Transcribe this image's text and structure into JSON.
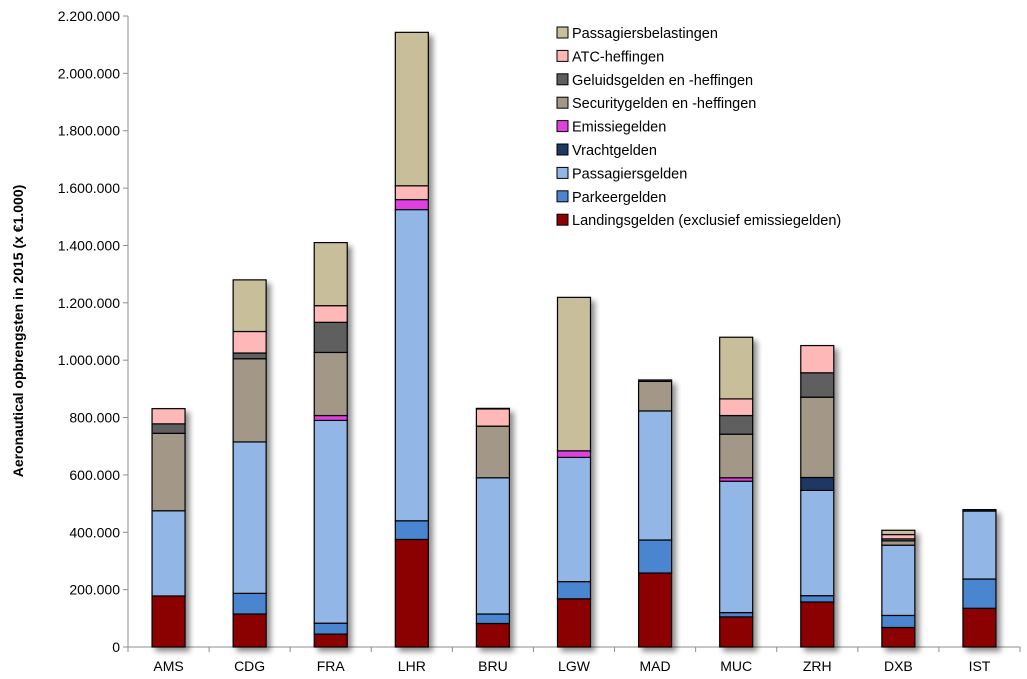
{
  "chart_data": {
    "type": "bar",
    "stacked": true,
    "title": "",
    "xlabel": "",
    "ylabel": "Aeronautical opbrengsten in 2015 (x €1.000)",
    "ylim": [
      0,
      2200000
    ],
    "y_ticks": [
      "0",
      "200.000",
      "400.000",
      "600.000",
      "800.000",
      "1.000.000",
      "1.200.000",
      "1.400.000",
      "1.600.000",
      "1.800.000",
      "2.000.000",
      "2.200.000"
    ],
    "categories": [
      "AMS",
      "CDG",
      "FRA",
      "LHR",
      "BRU",
      "LGW",
      "MAD",
      "MUC",
      "ZRH",
      "DXB",
      "IST"
    ],
    "legend_position": "top-right",
    "series": [
      {
        "name": "Landingsgelden (exclusief emissiegelden)",
        "color": "#8b0000",
        "values": [
          178000,
          115000,
          45000,
          375000,
          82000,
          168000,
          258000,
          105000,
          157000,
          68000,
          135000
        ]
      },
      {
        "name": "Parkeergelden",
        "color": "#4a86cf",
        "values": [
          0,
          72000,
          38000,
          65000,
          33000,
          60000,
          115000,
          15000,
          22000,
          42000,
          102000
        ]
      },
      {
        "name": "Passagiersgelden",
        "color": "#92b6e6",
        "values": [
          297000,
          528000,
          707000,
          1085000,
          475000,
          433000,
          450000,
          458000,
          367000,
          245000,
          237000
        ]
      },
      {
        "name": "Vrachtgelden",
        "color": "#1f3864",
        "values": [
          0,
          0,
          0,
          0,
          0,
          0,
          0,
          0,
          45000,
          0,
          5000
        ]
      },
      {
        "name": "Emissiegelden",
        "color": "#e040e0",
        "values": [
          0,
          0,
          17000,
          35000,
          0,
          23000,
          0,
          12000,
          0,
          0,
          0
        ]
      },
      {
        "name": "Securitygelden en -heffingen",
        "color": "#a39887",
        "values": [
          270000,
          290000,
          220000,
          0,
          180000,
          0,
          103000,
          152000,
          280000,
          15000,
          0
        ]
      },
      {
        "name": "Geluidsgelden en -heffingen",
        "color": "#5f5f5f",
        "values": [
          33000,
          20000,
          105000,
          0,
          0,
          0,
          5000,
          65000,
          85000,
          7000,
          0
        ]
      },
      {
        "name": "ATC-heffingen",
        "color": "#ffb8b8",
        "values": [
          53000,
          75000,
          58000,
          48000,
          60000,
          0,
          0,
          58000,
          95000,
          15000,
          0
        ]
      },
      {
        "name": "Passagiersbelastingen",
        "color": "#c8be9a",
        "values": [
          0,
          180000,
          220000,
          535000,
          2000,
          535000,
          0,
          215000,
          0,
          15000,
          0
        ]
      }
    ]
  }
}
